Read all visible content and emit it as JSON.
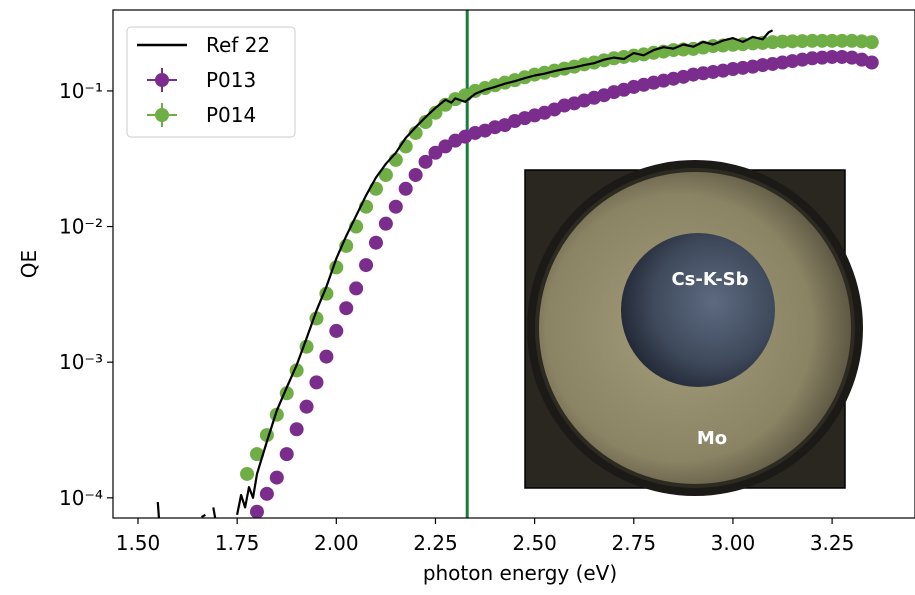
{
  "chart_data": {
    "type": "scatter",
    "xlabel": "photon energy (eV)",
    "ylabel": "QE",
    "log_y": true,
    "legend": "upper left",
    "xlim": [
      1.437,
      3.459
    ],
    "ylim": [
      7.1e-05,
      0.395
    ],
    "xticks": [
      {
        "value": 1.5,
        "label": "1.50"
      },
      1.75,
      {
        "value": 2.0,
        "label": "2.00"
      },
      2.25,
      {
        "value": 2.5,
        "label": "2.50"
      },
      2.75,
      {
        "value": 3.0,
        "label": "3.00"
      },
      3.25
    ],
    "yticks": [
      {
        "value": 0.0001,
        "label": "10⁻⁴"
      },
      {
        "value": 0.001,
        "label": "10⁻³"
      },
      {
        "value": 0.01,
        "label": "10⁻²"
      },
      {
        "value": 0.1,
        "label": "10⁻¹"
      }
    ],
    "vline": {
      "x": 2.33,
      "color": "#1b7a3c"
    },
    "inset": {
      "labels": [
        "Cs-K-Sb",
        "Mo"
      ]
    },
    "series": [
      {
        "name": "Ref 22",
        "style": "line",
        "color": "#000000",
        "x": [
          1.55,
          1.553,
          null,
          1.66,
          1.67,
          null,
          1.69,
          1.695,
          null,
          1.75,
          1.76,
          1.77,
          1.78,
          1.79,
          1.8,
          1.825,
          1.85,
          1.875,
          1.9,
          1.925,
          1.95,
          1.975,
          2.0,
          2.025,
          2.05,
          2.075,
          2.1,
          2.125,
          2.15,
          2.175,
          2.2,
          2.225,
          2.25,
          2.275,
          2.29,
          2.3,
          2.325,
          2.35,
          2.375,
          2.4,
          2.425,
          2.45,
          2.475,
          2.5,
          2.525,
          2.55,
          2.575,
          2.6,
          2.625,
          2.65,
          2.675,
          2.7,
          2.725,
          2.75,
          2.775,
          2.8,
          2.825,
          2.85,
          2.875,
          2.9,
          2.925,
          2.95,
          2.975,
          3.0,
          3.025,
          3.05,
          3.075,
          3.09,
          3.1
        ],
        "values": [
          9.3e-05,
          7e-05,
          null,
          7.2e-05,
          7.5e-05,
          null,
          8.5e-05,
          7e-05,
          null,
          7.5e-05,
          0.000105,
          8.5e-05,
          0.00012,
          0.0001,
          0.00015,
          0.00026,
          0.00044,
          0.00065,
          0.00095,
          0.0015,
          0.0024,
          0.0036,
          0.0058,
          0.0085,
          0.012,
          0.017,
          0.023,
          0.029,
          0.035,
          0.045,
          0.054,
          0.064,
          0.075,
          0.086,
          0.082,
          0.088,
          0.083,
          0.095,
          0.102,
          0.107,
          0.113,
          0.118,
          0.124,
          0.13,
          0.134,
          0.14,
          0.145,
          0.149,
          0.155,
          0.16,
          0.17,
          0.176,
          0.172,
          0.19,
          0.183,
          0.2,
          0.21,
          0.205,
          0.22,
          0.212,
          0.23,
          0.22,
          0.235,
          0.245,
          0.23,
          0.25,
          0.24,
          0.27,
          0.28
        ]
      },
      {
        "name": "P013",
        "style": "marker",
        "color": "#7b2d8e",
        "x": [
          1.8,
          1.825,
          1.85,
          1.875,
          1.9,
          1.925,
          1.95,
          1.975,
          2.0,
          2.025,
          2.05,
          2.075,
          2.1,
          2.125,
          2.15,
          2.175,
          2.2,
          2.225,
          2.25,
          2.275,
          2.3,
          2.325,
          2.35,
          2.375,
          2.4,
          2.425,
          2.45,
          2.475,
          2.5,
          2.525,
          2.55,
          2.575,
          2.6,
          2.625,
          2.65,
          2.675,
          2.7,
          2.725,
          2.75,
          2.775,
          2.8,
          2.825,
          2.85,
          2.875,
          2.9,
          2.925,
          2.95,
          2.975,
          3.0,
          3.025,
          3.05,
          3.075,
          3.1,
          3.125,
          3.15,
          3.175,
          3.2,
          3.225,
          3.25,
          3.275,
          3.3,
          3.325,
          3.35
        ],
        "values": [
          7.9e-05,
          0.000107,
          0.000141,
          0.00021,
          0.00032,
          0.00047,
          0.00071,
          0.0011,
          0.0017,
          0.0025,
          0.0035,
          0.0052,
          0.0076,
          0.0105,
          0.014,
          0.019,
          0.024,
          0.03,
          0.035,
          0.039,
          0.043,
          0.046,
          0.049,
          0.051,
          0.054,
          0.056,
          0.06,
          0.063,
          0.066,
          0.069,
          0.073,
          0.078,
          0.081,
          0.085,
          0.089,
          0.093,
          0.098,
          0.102,
          0.107,
          0.111,
          0.115,
          0.119,
          0.123,
          0.127,
          0.132,
          0.135,
          0.138,
          0.141,
          0.145,
          0.148,
          0.151,
          0.155,
          0.158,
          0.162,
          0.166,
          0.17,
          0.174,
          0.176,
          0.178,
          0.178,
          0.176,
          0.17,
          0.162
        ]
      },
      {
        "name": "P014",
        "style": "marker",
        "color": "#6fae45",
        "x": [
          1.775,
          1.8,
          1.825,
          1.85,
          1.875,
          1.9,
          1.925,
          1.95,
          1.975,
          2.0,
          2.025,
          2.05,
          2.075,
          2.1,
          2.125,
          2.15,
          2.175,
          2.2,
          2.225,
          2.25,
          2.275,
          2.3,
          2.325,
          2.35,
          2.375,
          2.4,
          2.425,
          2.45,
          2.475,
          2.5,
          2.525,
          2.55,
          2.575,
          2.6,
          2.625,
          2.65,
          2.675,
          2.7,
          2.725,
          2.75,
          2.775,
          2.8,
          2.825,
          2.85,
          2.875,
          2.9,
          2.925,
          2.95,
          2.975,
          3.0,
          3.025,
          3.05,
          3.075,
          3.1,
          3.125,
          3.15,
          3.175,
          3.2,
          3.225,
          3.25,
          3.275,
          3.3,
          3.325,
          3.35
        ],
        "values": [
          0.00015,
          0.00021,
          0.00029,
          0.00041,
          0.00059,
          0.00087,
          0.0013,
          0.0021,
          0.0032,
          0.005,
          0.0072,
          0.01,
          0.014,
          0.019,
          0.024,
          0.031,
          0.039,
          0.049,
          0.059,
          0.069,
          0.079,
          0.087,
          0.093,
          0.1,
          0.105,
          0.11,
          0.115,
          0.12,
          0.126,
          0.132,
          0.136,
          0.141,
          0.146,
          0.151,
          0.157,
          0.162,
          0.168,
          0.174,
          0.178,
          0.182,
          0.186,
          0.191,
          0.195,
          0.2,
          0.202,
          0.204,
          0.209,
          0.214,
          0.216,
          0.219,
          0.221,
          0.224,
          0.226,
          0.229,
          0.231,
          0.232,
          0.233,
          0.234,
          0.234,
          0.234,
          0.234,
          0.234,
          0.232,
          0.229
        ]
      }
    ]
  }
}
